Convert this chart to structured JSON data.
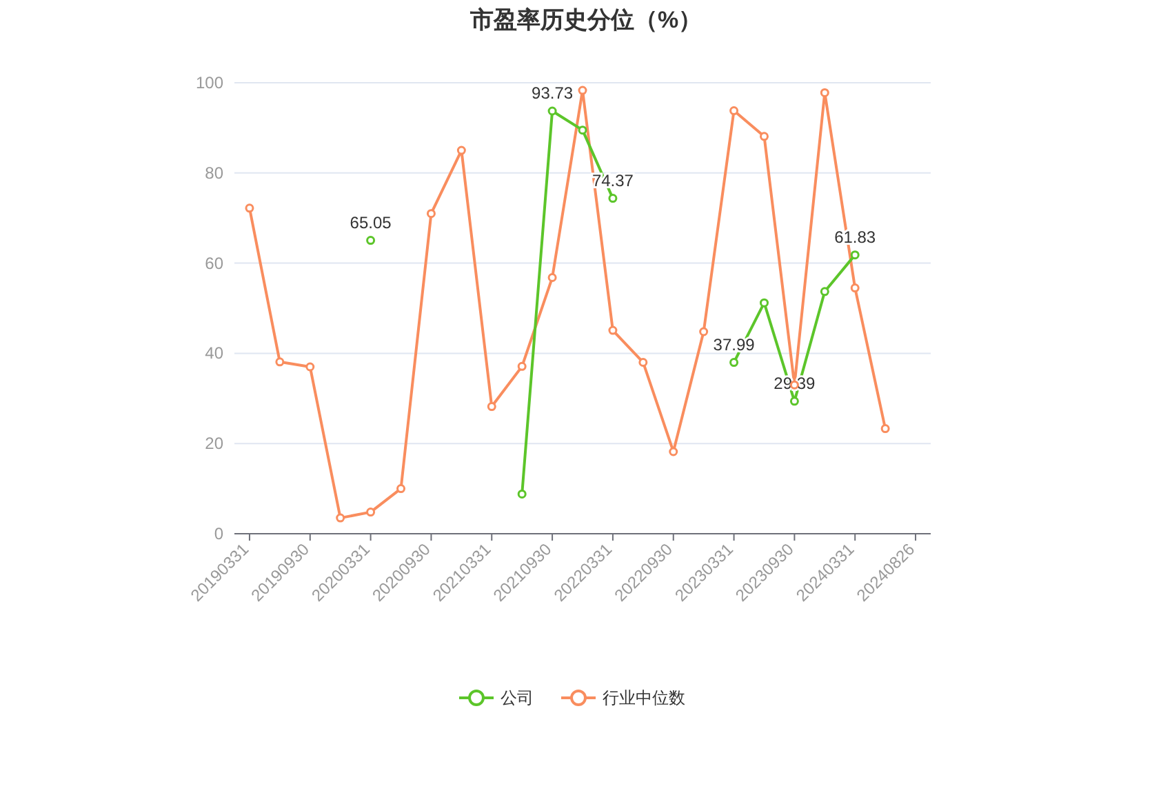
{
  "chart_data": {
    "type": "line",
    "title": "市盈率历史分位（%）",
    "categories": [
      "20190331",
      null,
      "20190930",
      null,
      "20200331",
      null,
      "20200930",
      null,
      "20210331",
      null,
      "20210930",
      null,
      "20220331",
      null,
      "20220930",
      null,
      "20230331",
      null,
      "20230930",
      null,
      "20240331",
      null,
      "20240826"
    ],
    "series": [
      {
        "name": "公司",
        "color": "#5cc52a",
        "values": [
          null,
          null,
          null,
          null,
          65.05,
          null,
          null,
          null,
          null,
          8.8,
          93.73,
          89.5,
          74.37,
          null,
          null,
          null,
          37.99,
          51.2,
          29.39,
          53.7,
          61.83,
          null,
          null
        ],
        "value_labels": [
          null,
          null,
          null,
          null,
          "65.05",
          null,
          null,
          null,
          null,
          null,
          "93.73",
          null,
          "74.37",
          null,
          null,
          null,
          "37.99",
          null,
          "29.39",
          null,
          "61.83",
          null,
          null
        ]
      },
      {
        "name": "行业中位数",
        "color": "#f98d5e",
        "values": [
          72.2,
          38.1,
          37,
          3.5,
          4.8,
          10,
          71,
          85,
          28.2,
          37.1,
          56.8,
          98.3,
          45.1,
          38,
          18.2,
          44.8,
          93.8,
          88.1,
          33,
          97.8,
          54.5,
          23.3,
          null
        ]
      }
    ],
    "ylim": [
      0,
      100
    ],
    "yticks": [
      0,
      20,
      40,
      60,
      80,
      100
    ],
    "grid": "y",
    "legend": "bottom",
    "marker": "circle",
    "line_style": "solid"
  }
}
